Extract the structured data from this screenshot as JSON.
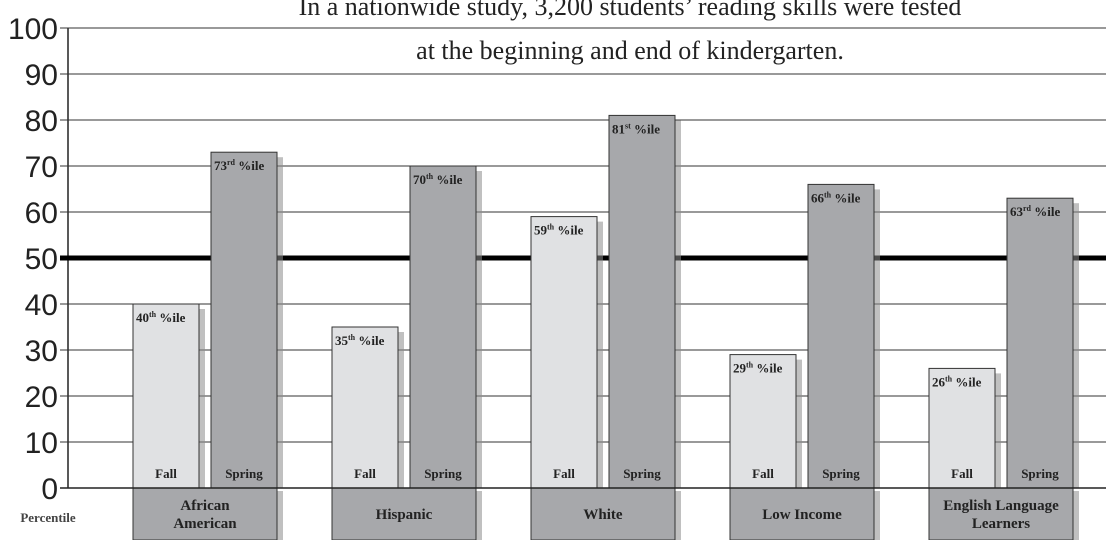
{
  "chart_data": {
    "type": "bar",
    "title": "In a nationwide study, 3,200 students’ reading skills were tested at the beginning and end of kindergarten.",
    "title_lines": [
      "In a nationwide study, 3,200 students’ reading skills were tested",
      "at the beginning and end of kindergarten."
    ],
    "ylabel": "Percentile",
    "ylim": [
      0,
      100
    ],
    "yticks": [
      0,
      10,
      20,
      30,
      40,
      50,
      60,
      70,
      80,
      90,
      100
    ],
    "reference_line": 50,
    "grid": true,
    "categories": [
      "African American",
      "Hispanic",
      "White",
      "Low Income",
      "English Language Learners"
    ],
    "category_lines": [
      [
        "African",
        "American"
      ],
      [
        "Hispanic"
      ],
      [
        "White"
      ],
      [
        "Low Income"
      ],
      [
        "English Language",
        "Learners"
      ]
    ],
    "series": [
      {
        "name": "Fall",
        "values": [
          40,
          35,
          59,
          29,
          26
        ],
        "labels": [
          [
            "40",
            "th"
          ],
          [
            "35",
            "th"
          ],
          [
            "59",
            "th"
          ],
          [
            "29",
            "th"
          ],
          [
            "26",
            "th"
          ]
        ]
      },
      {
        "name": "Spring",
        "values": [
          73,
          70,
          81,
          66,
          63
        ],
        "labels": [
          [
            "73",
            "rd"
          ],
          [
            "70",
            "th"
          ],
          [
            "81",
            "st"
          ],
          [
            "66",
            "th"
          ],
          [
            "63",
            "rd"
          ]
        ]
      }
    ],
    "label_suffix": " %ile",
    "colors": {
      "fall": "#e0e1e3",
      "spring": "#a7a8ab",
      "category_box": "#a7a8ab",
      "shadow": "#8c8c8c",
      "reference_line": "#000000",
      "grid": "#333333"
    }
  }
}
